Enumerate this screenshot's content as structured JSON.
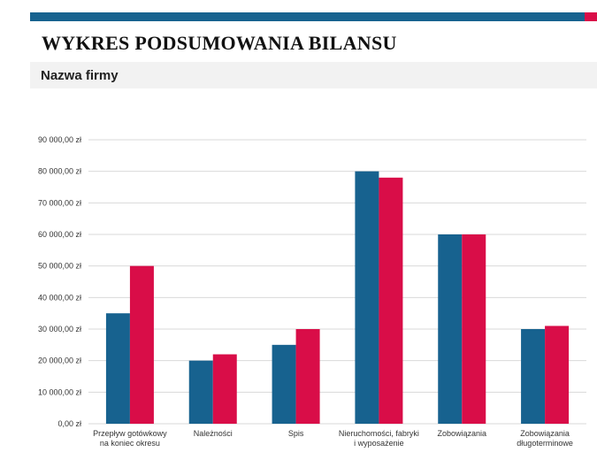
{
  "header": {
    "title": "WYKRES PODSUMOWANIA BILANSU",
    "company": "Nazwa firmy"
  },
  "colors": {
    "accent_blue": "#17628f",
    "accent_red": "#d90d48",
    "grid": "#d9d9d9",
    "band": "#f2f2f2"
  },
  "chart_data": {
    "type": "bar",
    "categories": [
      [
        "Przepływ gotówkowy",
        "na koniec okresu"
      ],
      [
        "Należności"
      ],
      [
        "Spis"
      ],
      [
        "Nieruchomości, fabryki",
        "i wyposażenie"
      ],
      [
        "Zobowiązania"
      ],
      [
        "Zobowiązania",
        "długoterminowe"
      ]
    ],
    "series": [
      {
        "values": [
          35000,
          20000,
          25000,
          80000,
          60000,
          30000
        ],
        "color": "#17628f"
      },
      {
        "values": [
          50000,
          22000,
          30000,
          78000,
          60000,
          31000
        ],
        "color": "#d90d48"
      }
    ],
    "ylim": [
      0,
      90000
    ],
    "yticks": [
      0,
      10000,
      20000,
      30000,
      40000,
      50000,
      60000,
      70000,
      80000,
      90000
    ],
    "ytick_labels": [
      "0,00 zł",
      "10 000,00 zł",
      "20 000,00 zł",
      "30 000,00 zł",
      "40 000,00 zł",
      "50 000,00 zł",
      "60 000,00 zł",
      "70 000,00 zł",
      "80 000,00 zł",
      "90 000,00 zł"
    ],
    "grid": true,
    "legend": "none"
  }
}
